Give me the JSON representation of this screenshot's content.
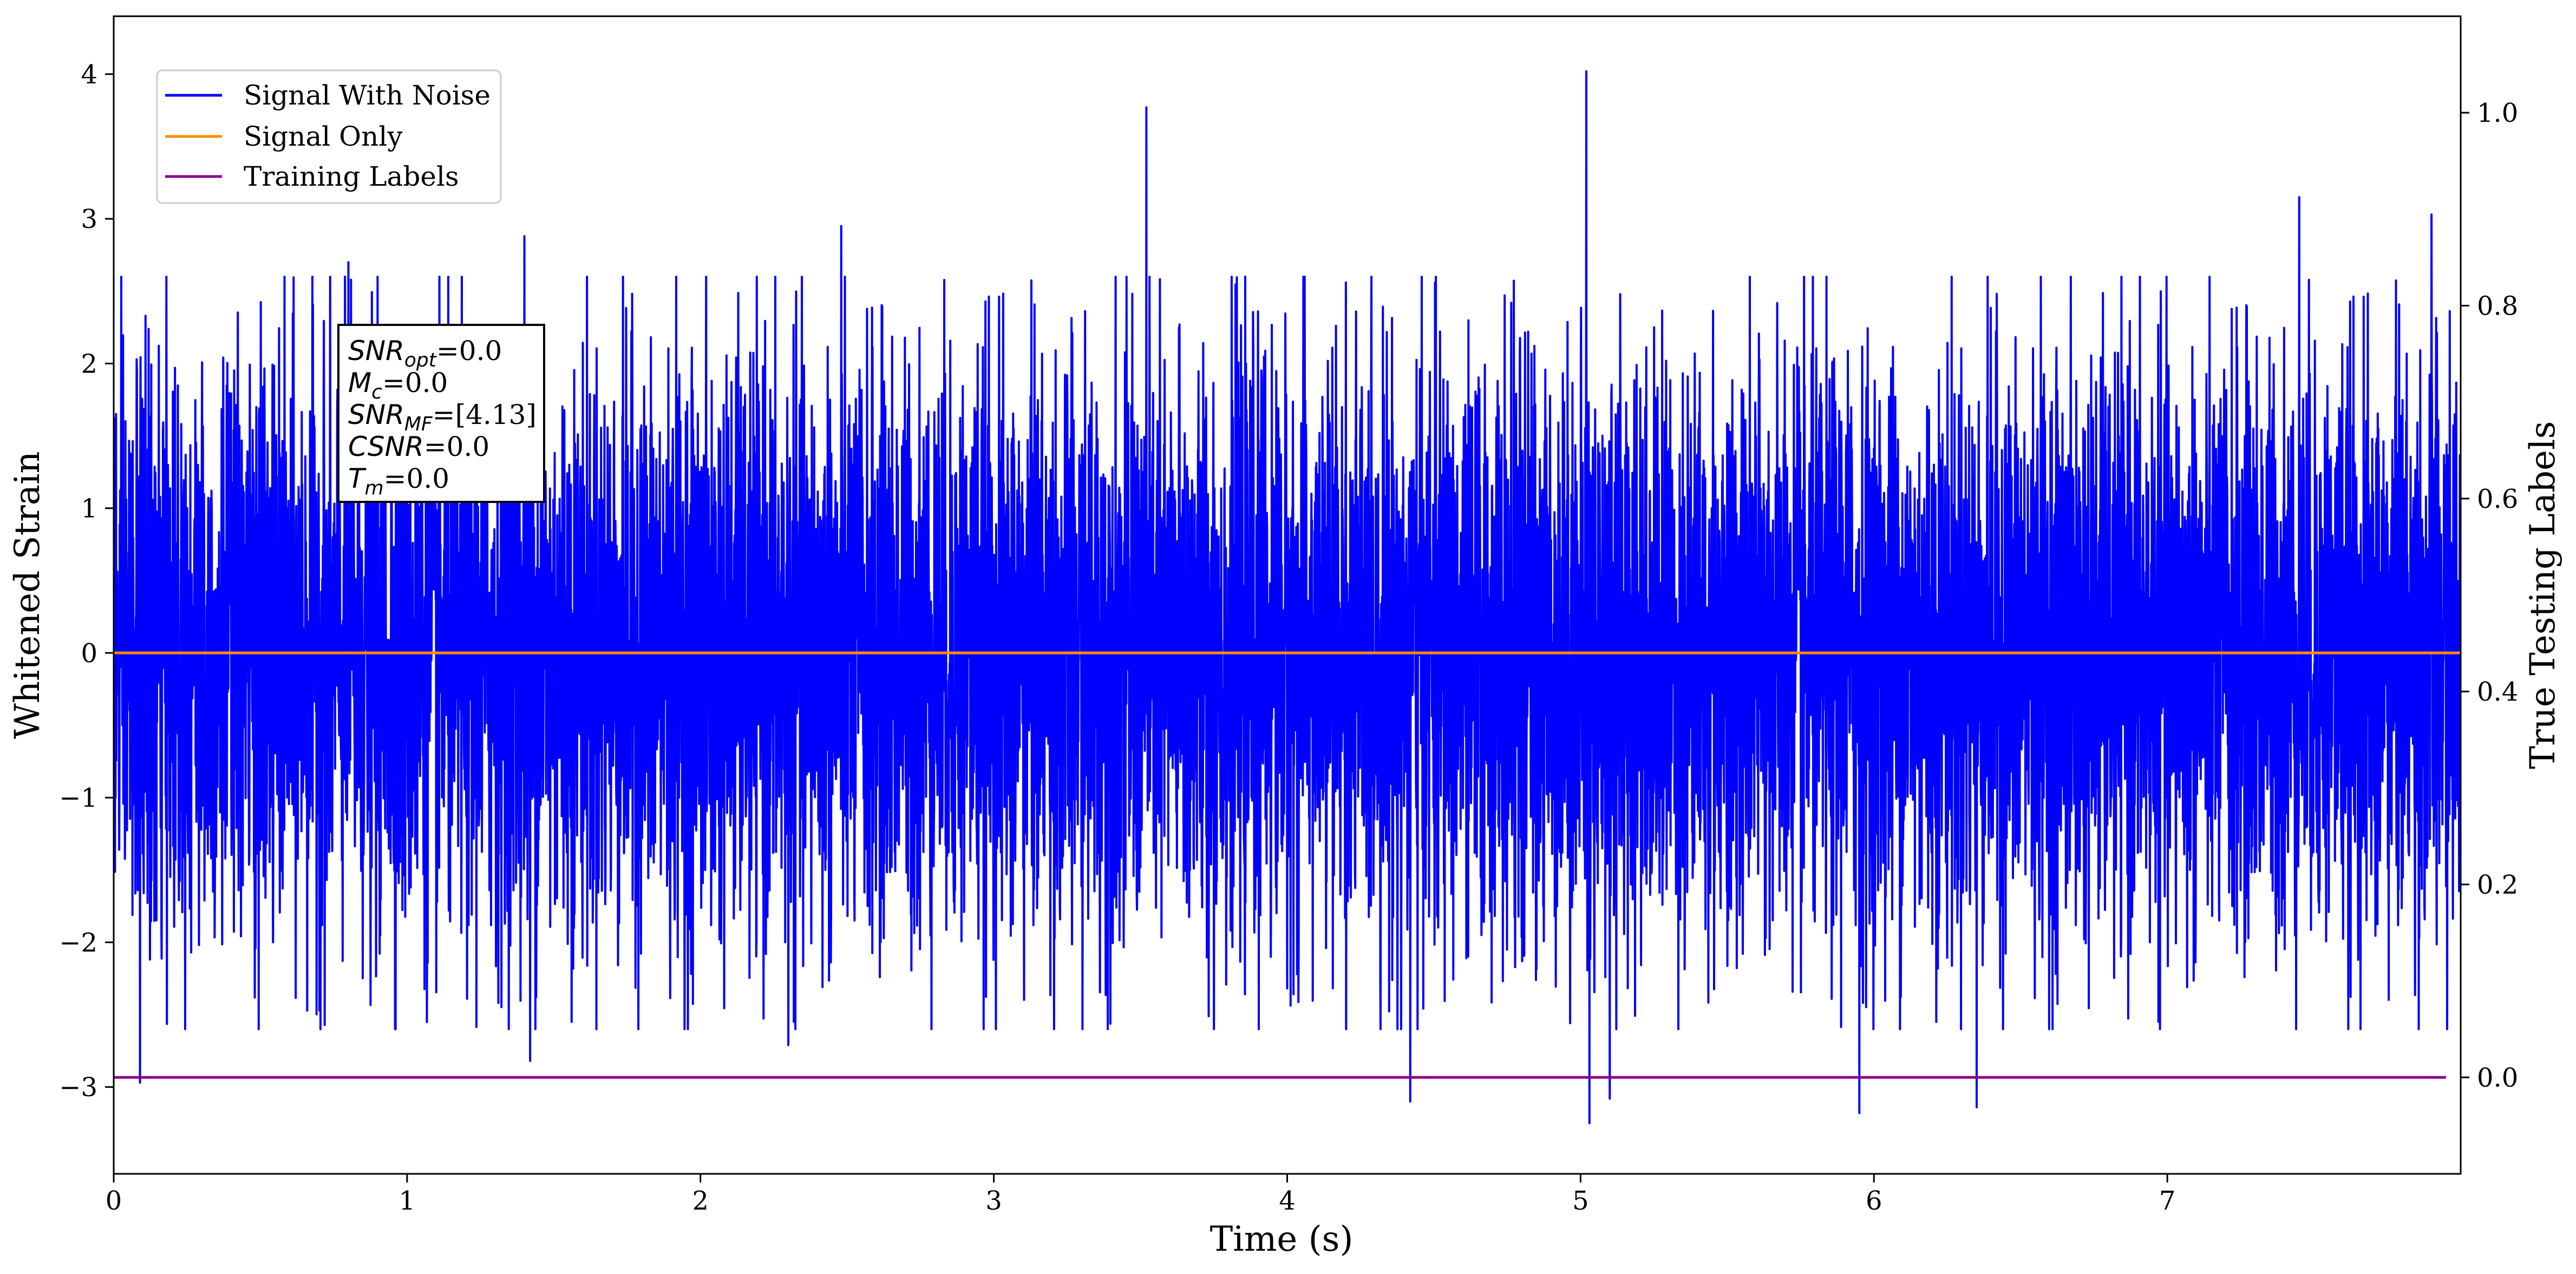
{
  "chart_data": {
    "type": "line",
    "title": "",
    "xlabel": "Time (s)",
    "ylabel": "Whitened Strain",
    "ylabel_right": "True Testing Labels",
    "xlim": [
      0,
      8
    ],
    "ylim": [
      -3.6,
      4.4
    ],
    "ylim_right": [
      -0.1,
      1.1
    ],
    "grid": false,
    "legend_position": "top-left",
    "x_ticks": [
      {
        "value": 0,
        "label": "0"
      },
      {
        "value": 1,
        "label": "1"
      },
      {
        "value": 2,
        "label": "2"
      },
      {
        "value": 3,
        "label": "3"
      },
      {
        "value": 4,
        "label": "4"
      },
      {
        "value": 5,
        "label": "5"
      },
      {
        "value": 6,
        "label": "6"
      },
      {
        "value": 7,
        "label": "7"
      }
    ],
    "y_ticks": [
      {
        "value": 4,
        "label": "4"
      },
      {
        "value": 3,
        "label": "3"
      },
      {
        "value": 2,
        "label": "2"
      },
      {
        "value": 1,
        "label": "1"
      },
      {
        "value": 0,
        "label": "0"
      },
      {
        "value": -1,
        "label": "−1"
      },
      {
        "value": -2,
        "label": "−2"
      },
      {
        "value": -3,
        "label": "−3"
      }
    ],
    "y_ticks_right": [
      {
        "value": 1.0,
        "label": "1.0"
      },
      {
        "value": 0.8,
        "label": "0.8"
      },
      {
        "value": 0.6,
        "label": "0.6"
      },
      {
        "value": 0.4,
        "label": "0.4"
      },
      {
        "value": 0.2,
        "label": "0.2"
      },
      {
        "value": 0.0,
        "label": "0.0"
      }
    ],
    "series": [
      {
        "name": "Signal With Noise",
        "color": "#0000ff",
        "axis": "left",
        "x_range": [
          0,
          8
        ],
        "typical_amplitude": 1.0,
        "peaks": [
          {
            "x": 0.09,
            "y": -2.97
          },
          {
            "x": 0.8,
            "y": 2.7
          },
          {
            "x": 1.4,
            "y": 2.88
          },
          {
            "x": 1.42,
            "y": -2.82
          },
          {
            "x": 2.3,
            "y": -2.71
          },
          {
            "x": 2.48,
            "y": 2.95
          },
          {
            "x": 3.52,
            "y": 3.77
          },
          {
            "x": 4.42,
            "y": -3.1
          },
          {
            "x": 5.02,
            "y": 4.02
          },
          {
            "x": 5.03,
            "y": -3.25
          },
          {
            "x": 5.1,
            "y": -3.08
          },
          {
            "x": 5.95,
            "y": -3.18
          },
          {
            "x": 6.35,
            "y": -3.14
          },
          {
            "x": 7.45,
            "y": 3.15
          },
          {
            "x": 7.9,
            "y": 3.03
          }
        ]
      },
      {
        "name": "Signal Only",
        "color": "#ff8c00",
        "axis": "left",
        "x": [
          0,
          8
        ],
        "y": [
          0,
          0
        ]
      },
      {
        "name": "Training Labels",
        "color": "#8b008b",
        "axis": "right",
        "x": [
          0,
          7.95
        ],
        "y": [
          0,
          0
        ]
      }
    ],
    "annotation": {
      "lines": [
        {
          "base": "SNR",
          "sub": "opt",
          "value": "=0.0"
        },
        {
          "base": "M",
          "sub": "c",
          "value": "=0.0"
        },
        {
          "base": "SNR",
          "sub": "MF",
          "value": "=[4.13]"
        },
        {
          "base": "CSNR",
          "sub": "",
          "value": "=0.0"
        },
        {
          "base": "T",
          "sub": "m",
          "value": "=0.0"
        }
      ]
    }
  }
}
